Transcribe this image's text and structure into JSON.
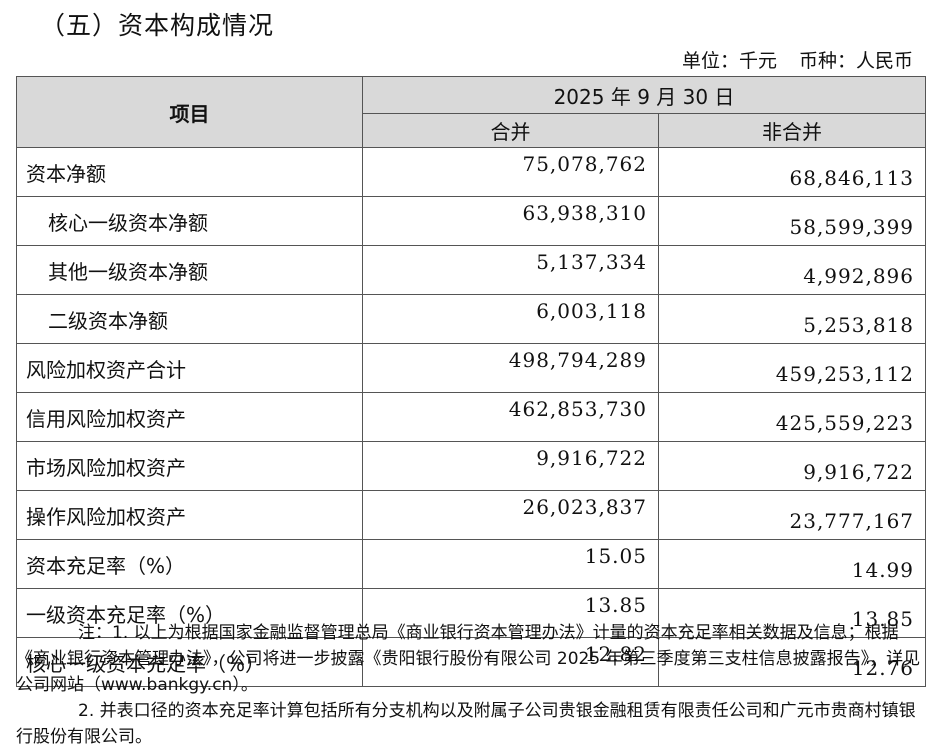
{
  "heading": "（五）资本构成情况",
  "unit": {
    "unit_text": "单位：千元",
    "currency_text": "币种：人民币"
  },
  "table": {
    "item_header": "项目",
    "date_header": "2025 年 9 月 30 日",
    "col_consolidated": "合并",
    "col_nonconsolidated": "非合并",
    "rows": [
      {
        "label": "资本净额",
        "consolidated": "75,078,762",
        "nonconsolidated": "68,846,113"
      },
      {
        "label": "核心一级资本净额",
        "consolidated": "63,938,310",
        "nonconsolidated": "58,599,399"
      },
      {
        "label": "其他一级资本净额",
        "consolidated": "5,137,334",
        "nonconsolidated": "4,992,896"
      },
      {
        "label": "二级资本净额",
        "consolidated": "6,003,118",
        "nonconsolidated": "5,253,818"
      },
      {
        "label": "风险加权资产合计",
        "consolidated": "498,794,289",
        "nonconsolidated": "459,253,112"
      },
      {
        "label": "信用风险加权资产",
        "consolidated": "462,853,730",
        "nonconsolidated": "425,559,223"
      },
      {
        "label": "市场风险加权资产",
        "consolidated": "9,916,722",
        "nonconsolidated": "9,916,722"
      },
      {
        "label": "操作风险加权资产",
        "consolidated": "26,023,837",
        "nonconsolidated": "23,777,167"
      },
      {
        "label": "资本充足率（%）",
        "consolidated": "15.05",
        "nonconsolidated": "14.99"
      },
      {
        "label": "一级资本充足率（%）",
        "consolidated": "13.85",
        "nonconsolidated": "13.85"
      },
      {
        "label": "核心一级资本充足率（%）",
        "consolidated": "12.82",
        "nonconsolidated": "12.76"
      }
    ]
  },
  "notes": {
    "note1": "注：1. 以上为根据国家金融监督管理总局《商业银行资本管理办法》计量的资本充足率相关数据及信息；根据《商业银行资本管理办法》，公司将进一步披露《贵阳银行股份有限公司 2025 年第三季度第三支柱信息披露报告》，详见公司网站（www.bankgy.cn）。",
    "note2": "2. 并表口径的资本充足率计算包括所有分支机构以及附属子公司贵银金融租赁有限责任公司和广元市贵商村镇银行股份有限公司。"
  }
}
